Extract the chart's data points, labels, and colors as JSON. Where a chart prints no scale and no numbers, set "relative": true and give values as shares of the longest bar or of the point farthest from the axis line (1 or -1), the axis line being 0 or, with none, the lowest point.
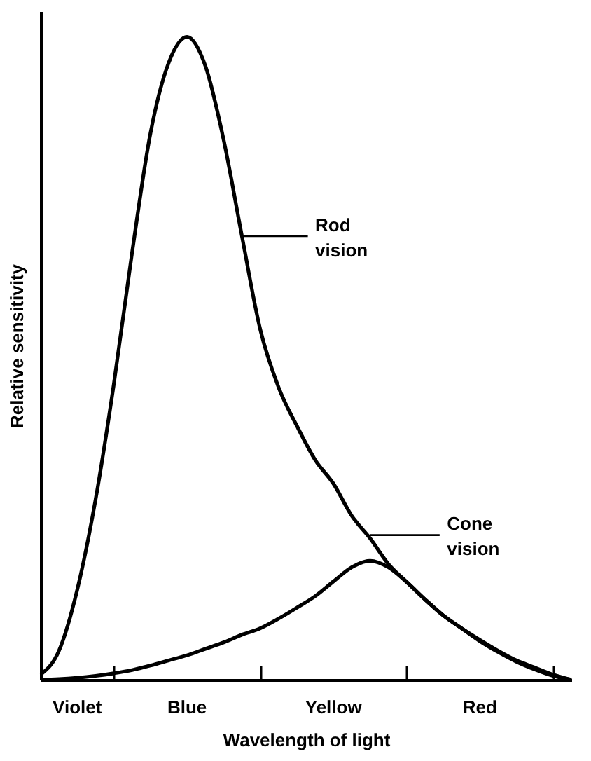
{
  "chart_data": {
    "type": "line",
    "relative": true,
    "xlabel": "Wavelength of light",
    "ylabel": "Relative sensitivity",
    "categories": [
      null,
      null,
      "Violet",
      null,
      null,
      null,
      null,
      null,
      "Blue",
      null,
      null,
      null,
      null,
      null,
      null,
      null,
      "Yellow",
      null,
      null,
      null,
      null,
      null,
      null,
      null,
      "Red",
      null,
      null,
      null,
      null,
      null
    ],
    "series": [
      {
        "name": "Rod vision",
        "color": "#000000",
        "values": [
          0.008,
          0.045,
          0.14,
          0.28,
          0.46,
          0.665,
          0.85,
          0.96,
          1,
          0.955,
          0.84,
          0.69,
          0.545,
          0.455,
          0.395,
          0.342,
          0.305,
          0.255,
          0.22,
          0.18,
          0.152,
          0.125,
          0.1,
          0.08,
          0.062,
          0.045,
          0.03,
          0.019,
          0.008,
          0
        ]
      },
      {
        "name": "Cone vision",
        "color": "#000000",
        "values": [
          0,
          0.001,
          0.003,
          0.006,
          0.01,
          0.015,
          0.022,
          0.03,
          0.038,
          0.048,
          0.058,
          0.07,
          0.08,
          0.095,
          0.112,
          0.13,
          0.153,
          0.175,
          0.185,
          0.175,
          0.152,
          0.125,
          0.1,
          0.08,
          0.06,
          0.043,
          0.028,
          0.016,
          0.006,
          0
        ]
      }
    ],
    "legend": "right",
    "grid": false,
    "marker": "none",
    "line_style": "solid"
  }
}
